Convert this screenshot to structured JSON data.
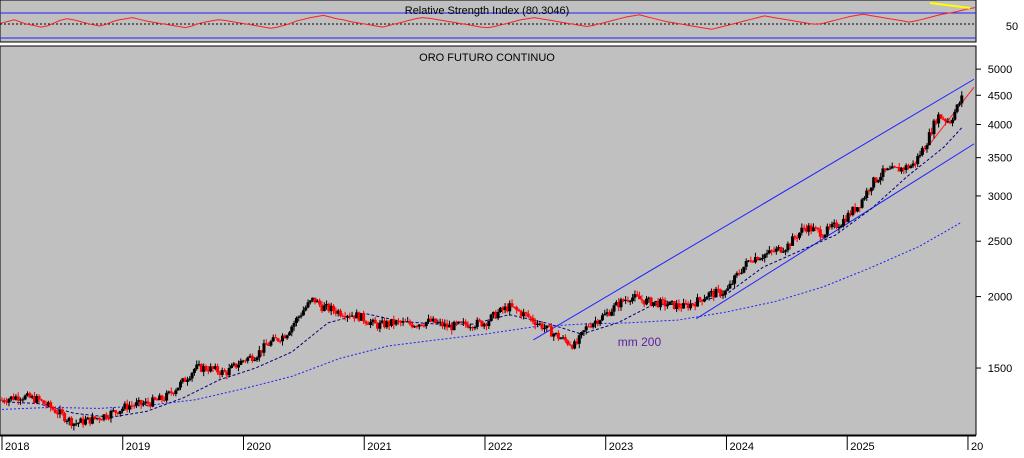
{
  "chart_data": [
    {
      "type": "line",
      "title": "Relative Strength Index (80.3046)",
      "y_tick_labels": [
        "50"
      ],
      "y_ticks": [
        50
      ],
      "ylim": [
        20,
        90
      ],
      "reference_lines": [
        35,
        62
      ],
      "series": [
        {
          "values": [
            52,
            55,
            58,
            54,
            50,
            48,
            45,
            47,
            52,
            57,
            60,
            58,
            55,
            52,
            49,
            47,
            50,
            55,
            58,
            60,
            62,
            59,
            56,
            54,
            52,
            50,
            48,
            46,
            44,
            47,
            51,
            54,
            56,
            58,
            57,
            55,
            53,
            51,
            49,
            47,
            45,
            43,
            45,
            48,
            52,
            56,
            59,
            62,
            64,
            66,
            63,
            60,
            58,
            55,
            53,
            51,
            49,
            47,
            45,
            48,
            51,
            54,
            57,
            60,
            62,
            61,
            59,
            57,
            55,
            53,
            51,
            49,
            47,
            45,
            44,
            46,
            49,
            52,
            55,
            58,
            60,
            62,
            60,
            58,
            56,
            54,
            52,
            50,
            48,
            46,
            48,
            51,
            54,
            57,
            60,
            63,
            65,
            67,
            64,
            61,
            58,
            55,
            53,
            51,
            49,
            47,
            45,
            43,
            41,
            44,
            47,
            50,
            53,
            56,
            59,
            62,
            65,
            63,
            61,
            59,
            57,
            55,
            53,
            51,
            50,
            52,
            55,
            58,
            61,
            64,
            66,
            68,
            66,
            64,
            62,
            60,
            58,
            56,
            54,
            56,
            59,
            62,
            65,
            68,
            70,
            72,
            75,
            78,
            80
          ]
        }
      ]
    },
    {
      "type": "line",
      "title": "ORO FUTURO CONTINUO",
      "y_scale": "log",
      "ylim": [
        1150,
        5250
      ],
      "y_ticks": [
        1500,
        2000,
        2500,
        3000,
        3500,
        4000,
        4500,
        5000
      ],
      "y_tick_labels": [
        "1500",
        "2000",
        "2500",
        "3000",
        "3500",
        "4000",
        "4500",
        "5000"
      ],
      "x_ticks": [
        "2018",
        "2019",
        "2020",
        "2021",
        "2022",
        "2023",
        "2024",
        "2025",
        "20"
      ],
      "x_range": [
        2018.0,
        2026.05
      ],
      "annotations": [
        {
          "text": "mm 200",
          "x": 2023.1,
          "y": 1640
        }
      ],
      "series": [
        {
          "kind": "ohlc",
          "x": [
            2018.0,
            2018.15,
            2018.3,
            2018.45,
            2018.6,
            2018.75,
            2018.9,
            2019.05,
            2019.2,
            2019.35,
            2019.5,
            2019.6,
            2019.7,
            2019.85,
            2020.0,
            2020.1,
            2020.2,
            2020.35,
            2020.5,
            2020.58,
            2020.65,
            2020.8,
            2020.95,
            2021.1,
            2021.25,
            2021.4,
            2021.55,
            2021.7,
            2021.85,
            2022.0,
            2022.1,
            2022.2,
            2022.35,
            2022.5,
            2022.65,
            2022.75,
            2022.85,
            2023.0,
            2023.1,
            2023.2,
            2023.35,
            2023.5,
            2023.65,
            2023.75,
            2023.85,
            2024.0,
            2024.1,
            2024.2,
            2024.35,
            2024.5,
            2024.65,
            2024.8,
            2024.95,
            2025.1,
            2025.2,
            2025.3,
            2025.45,
            2025.55,
            2025.65,
            2025.75,
            2025.85,
            2025.95
          ],
          "values": [
            1320,
            1340,
            1320,
            1260,
            1200,
            1220,
            1250,
            1290,
            1300,
            1330,
            1420,
            1500,
            1500,
            1470,
            1550,
            1580,
            1650,
            1720,
            1900,
            1980,
            1920,
            1880,
            1850,
            1780,
            1800,
            1790,
            1810,
            1770,
            1790,
            1800,
            1870,
            1920,
            1850,
            1760,
            1680,
            1640,
            1780,
            1860,
            1940,
            2000,
            1960,
            1940,
            1920,
            1960,
            2020,
            2040,
            2200,
            2330,
            2380,
            2450,
            2650,
            2580,
            2700,
            2900,
            3150,
            3300,
            3350,
            3400,
            3700,
            4150,
            4050,
            4450
          ]
        },
        {
          "name": "mm 200",
          "kind": "moving-average",
          "x": [
            2018.0,
            2018.4,
            2018.8,
            2019.2,
            2019.6,
            2020.0,
            2020.4,
            2020.8,
            2021.2,
            2021.6,
            2022.0,
            2022.4,
            2022.8,
            2023.2,
            2023.6,
            2024.0,
            2024.4,
            2024.8,
            2025.2,
            2025.6,
            2025.95
          ],
          "values": [
            1270,
            1280,
            1275,
            1290,
            1320,
            1380,
            1450,
            1560,
            1640,
            1680,
            1720,
            1770,
            1790,
            1800,
            1820,
            1880,
            1960,
            2080,
            2250,
            2450,
            2700
          ]
        },
        {
          "kind": "moving-average-short",
          "x": [
            2018.0,
            2018.3,
            2018.6,
            2018.9,
            2019.2,
            2019.5,
            2019.8,
            2020.1,
            2020.4,
            2020.7,
            2021.0,
            2021.3,
            2021.6,
            2021.9,
            2022.2,
            2022.5,
            2022.8,
            2023.1,
            2023.4,
            2023.7,
            2024.0,
            2024.3,
            2024.6,
            2024.9,
            2025.2,
            2025.5,
            2025.8,
            2025.95
          ],
          "values": [
            1310,
            1300,
            1250,
            1230,
            1260,
            1330,
            1430,
            1500,
            1600,
            1800,
            1870,
            1810,
            1790,
            1790,
            1860,
            1800,
            1720,
            1800,
            1940,
            1940,
            2020,
            2250,
            2400,
            2560,
            2850,
            3250,
            3650,
            3950
          ]
        }
      ],
      "trendlines": [
        {
          "x": [
            2022.4,
            2026.05
          ],
          "y": [
            1680,
            4800
          ],
          "color": "#2020ff"
        },
        {
          "x": [
            2023.75,
            2026.05
          ],
          "y": [
            1830,
            3700
          ],
          "color": "#2020ff"
        },
        {
          "x": [
            2025.55,
            2026.05
          ],
          "y": [
            3400,
            4650
          ],
          "color": "#ff2020"
        }
      ]
    }
  ]
}
